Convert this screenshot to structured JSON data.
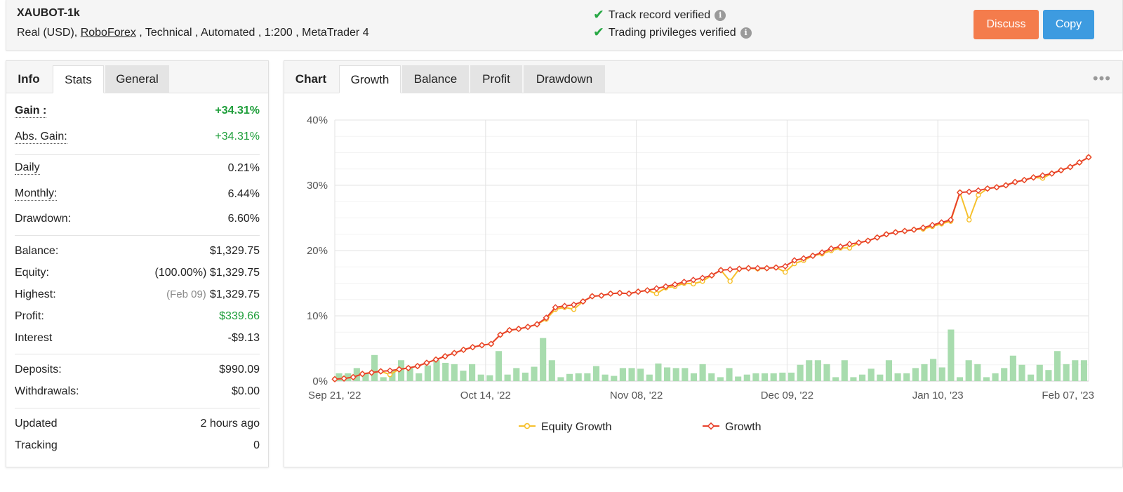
{
  "header": {
    "account_name": "XAUBOT-1k",
    "meta_prefix": "Real (USD), ",
    "broker": "RoboForex",
    "meta_suffix": " , Technical , Automated , 1:200 , MetaTrader 4",
    "verified": [
      "Track record verified",
      "Trading privileges verified"
    ],
    "discuss_label": "Discuss",
    "copy_label": "Copy"
  },
  "left_tabs": {
    "info": "Info",
    "stats": "Stats",
    "general": "General"
  },
  "stats": {
    "gain": {
      "label": "Gain :",
      "value": "+34.31%"
    },
    "abs_gain": {
      "label": "Abs. Gain:",
      "value": "+34.31%"
    },
    "daily": {
      "label": "Daily",
      "value": "0.21%"
    },
    "monthly": {
      "label": "Monthly:",
      "value": "6.44%"
    },
    "drawdown": {
      "label": "Drawdown:",
      "value": "6.60%"
    },
    "balance": {
      "label": "Balance:",
      "value": "$1,329.75"
    },
    "equity": {
      "label": "Equity:",
      "note": "(100.00%)",
      "value": "$1,329.75"
    },
    "highest": {
      "label": "Highest:",
      "note": "(Feb 09)",
      "value": "$1,329.75"
    },
    "profit": {
      "label": "Profit:",
      "value": "$339.66"
    },
    "interest": {
      "label": "Interest",
      "value": "-$9.13"
    },
    "deposits": {
      "label": "Deposits:",
      "value": "$990.09"
    },
    "withdrawals": {
      "label": "Withdrawals:",
      "value": "$0.00"
    },
    "updated": {
      "label": "Updated",
      "value": "2 hours ago"
    },
    "tracking": {
      "label": "Tracking",
      "value": "0"
    }
  },
  "chart_tabs": {
    "chart": "Chart",
    "growth": "Growth",
    "balance": "Balance",
    "profit": "Profit",
    "drawdown": "Drawdown",
    "more": "•••"
  },
  "colors": {
    "growth": "#e8402b",
    "equity": "#f6c02c",
    "bars": "#a8dcae",
    "discuss": "#f47c4c",
    "copy": "#3d9be0",
    "positive": "#1e9e3a"
  },
  "chart_data": {
    "type": "line",
    "x_tick_labels": [
      "Sep 21, '22",
      "Oct 14, '22",
      "Nov 08, '22",
      "Dec 09, '22",
      "Jan 10, '23",
      "Feb 07, '23"
    ],
    "y_tick_labels": [
      "0%",
      "10%",
      "20%",
      "30%",
      "40%"
    ],
    "ylim": [
      0,
      40
    ],
    "grid": true,
    "legend": "bottom",
    "series": [
      {
        "name": "Equity Growth",
        "values": [
          0.3,
          0.4,
          0.6,
          1.1,
          1.3,
          1.5,
          1.0,
          1.8,
          2.0,
          2.3,
          2.8,
          3.3,
          3.8,
          4.3,
          4.8,
          5.2,
          5.5,
          5.7,
          7.1,
          7.8,
          8.0,
          8.3,
          8.7,
          9.5,
          11.0,
          11.3,
          11.0,
          12.2,
          13.0,
          13.1,
          13.4,
          13.5,
          13.4,
          13.7,
          13.9,
          13.4,
          14.3,
          14.5,
          15.0,
          14.9,
          15.3,
          16.2,
          17.0,
          15.3,
          17.2,
          17.3,
          17.2,
          17.3,
          17.4,
          16.7,
          18.0,
          18.5,
          19.2,
          19.5,
          20.0,
          20.4,
          20.4,
          21.2,
          21.5,
          22.0,
          22.5,
          22.8,
          23.0,
          23.2,
          23.3,
          23.7,
          24.1,
          24.5,
          28.9,
          24.7,
          28.5,
          29.5,
          29.7,
          30.0,
          30.5,
          30.8,
          31.2,
          31.1,
          31.8,
          32.3,
          32.8,
          33.5,
          34.3
        ]
      },
      {
        "name": "Growth",
        "values": [
          0.3,
          0.4,
          0.6,
          1.1,
          1.3,
          1.5,
          1.6,
          1.8,
          2.0,
          2.3,
          2.8,
          3.3,
          3.8,
          4.3,
          4.8,
          5.2,
          5.5,
          5.7,
          7.1,
          7.8,
          8.0,
          8.3,
          8.7,
          9.7,
          11.3,
          11.5,
          11.7,
          12.2,
          13.0,
          13.1,
          13.4,
          13.5,
          13.4,
          13.7,
          13.9,
          14.2,
          14.5,
          14.8,
          15.2,
          15.5,
          15.8,
          16.2,
          17.0,
          17.1,
          17.2,
          17.3,
          17.3,
          17.3,
          17.4,
          17.6,
          18.5,
          18.8,
          19.2,
          19.7,
          20.3,
          20.6,
          21.0,
          21.2,
          21.5,
          22.0,
          22.5,
          22.8,
          23.0,
          23.2,
          23.5,
          23.9,
          24.3,
          24.7,
          28.9,
          29.0,
          29.2,
          29.5,
          29.7,
          30.0,
          30.5,
          30.8,
          31.2,
          31.5,
          31.8,
          32.3,
          32.8,
          33.5,
          34.3
        ]
      },
      {
        "name": "Profit bars",
        "values": [
          1.2,
          1.2,
          2.0,
          1.3,
          4.0,
          0.6,
          1.6,
          3.2,
          2.0,
          1.2,
          2.4,
          3.2,
          2.8,
          2.6,
          1.6,
          2.6,
          1.0,
          0.9,
          4.6,
          1.0,
          2.0,
          1.3,
          2.2,
          6.6,
          3.2,
          0.6,
          1.1,
          1.2,
          1.2,
          2.3,
          1.0,
          0.8,
          2.0,
          2.0,
          1.9,
          1.0,
          2.7,
          2.1,
          2.0,
          2.0,
          1.2,
          2.6,
          1.2,
          0.6,
          2.0,
          0.7,
          1.0,
          1.2,
          1.2,
          1.2,
          1.3,
          1.3,
          2.5,
          3.2,
          3.2,
          2.6,
          0.6,
          3.2,
          0.6,
          1.0,
          1.9,
          1.0,
          3.2,
          1.2,
          1.2,
          2.0,
          2.6,
          3.4,
          2.1,
          7.9,
          0.6,
          3.2,
          2.6,
          0.6,
          1.2,
          2.0,
          3.9,
          2.5,
          1.0,
          2.5,
          1.7,
          4.6,
          2.6,
          3.2,
          3.2
        ]
      }
    ]
  }
}
